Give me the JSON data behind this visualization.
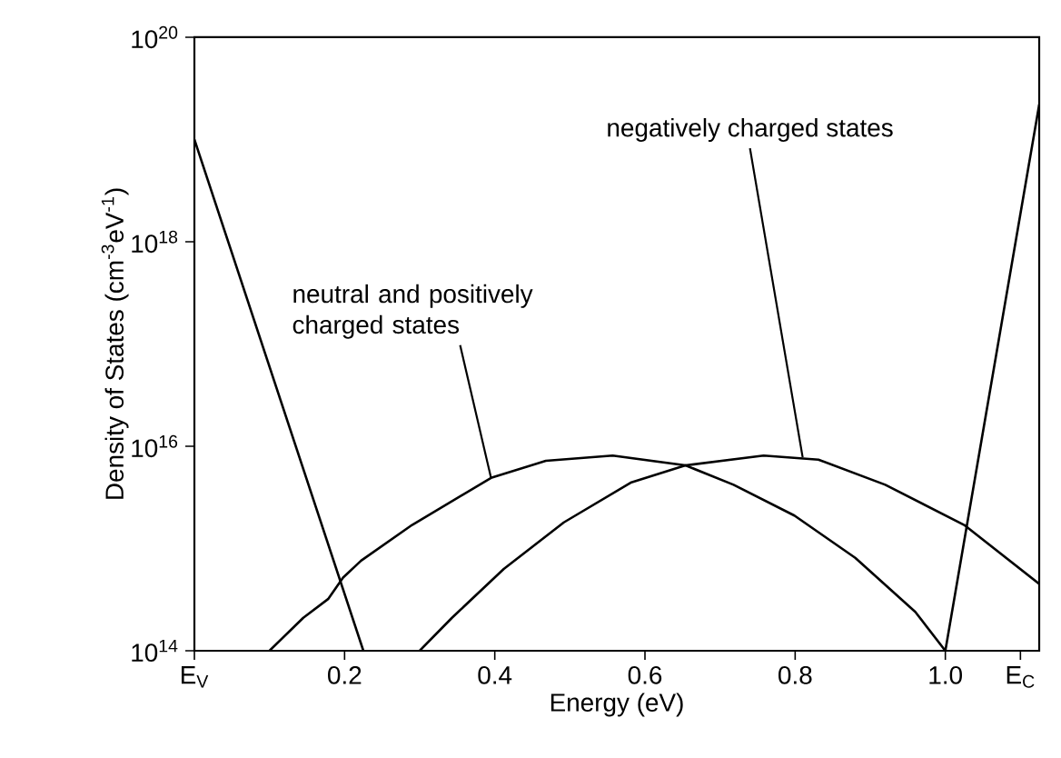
{
  "chart_data": {
    "type": "line",
    "xlabel": "Energy (eV)",
    "ylabel": "Density of States (cm$^{-3}$eV$^{-1}$)",
    "xlim": [
      0,
      1.125
    ],
    "ylim": [
      100000000000000.0,
      1e+20
    ],
    "log": "y",
    "xticks": [
      {
        "value": 0,
        "label": "E$_{V}$"
      },
      0.2,
      0.4,
      0.6,
      0.8,
      {
        "value": 1.0,
        "label": "1.0"
      },
      {
        "value": 1.1,
        "label": "E$_{C}$"
      }
    ],
    "yticks": [
      {
        "value": 100000000000000.0,
        "label": "10$^{14}$"
      },
      {
        "value": 1e+16,
        "label": "10$^{16}$"
      },
      {
        "value": 1e+18,
        "label": "10$^{18}$"
      },
      {
        "value": 1e+20,
        "label": "10$^{20}$"
      }
    ],
    "marker": "none",
    "series": [
      {
        "color": "#000000",
        "x": [
          0,
          0.225
        ],
        "values": [
          1e+19,
          100000000000000.0
        ]
      },
      {
        "color": "#000000",
        "x": [
          0.1,
          0.145,
          0.178,
          0.198,
          0.222,
          0.29,
          0.395,
          0.468,
          0.557,
          0.654,
          0.718,
          0.799,
          0.88,
          0.96,
          1.0
        ],
        "values": [
          100000000000000.0,
          210000000000000.0,
          320000000000000.0,
          520000000000000.0,
          760000000000000.0,
          1700000000000000.0,
          4900000000000000.0,
          7200000000000000.0,
          8100000000000000.0,
          6500000000000000.0,
          4200000000000000.0,
          2100000000000000.0,
          810000000000000.0,
          240000000000000.0,
          100000000000000.0
        ]
      },
      {
        "color": "#000000",
        "x": [
          0.3,
          0.343,
          0.412,
          0.492,
          0.581,
          0.654,
          0.758,
          0.831,
          0.92,
          1.025,
          1.125
        ],
        "values": [
          100000000000000.0,
          210000000000000.0,
          630000000000000.0,
          1800000000000000.0,
          4400000000000000.0,
          6500000000000000.0,
          8100000000000000.0,
          7400000000000000.0,
          4200000000000000.0,
          1700000000000000.0,
          450000000000000.0
        ]
      },
      {
        "color": "#000000",
        "x": [
          1.0,
          1.125
        ],
        "values": [
          100000000000000.0,
          2.2e+19
        ]
      }
    ],
    "annotations": [
      {
        "text": "neutral and positively charged states",
        "x": 0.395,
        "y": 4900000000000000.0
      },
      {
        "text": "negatively charged states",
        "x": 0.81,
        "y": 7800000000000000.0
      }
    ]
  }
}
